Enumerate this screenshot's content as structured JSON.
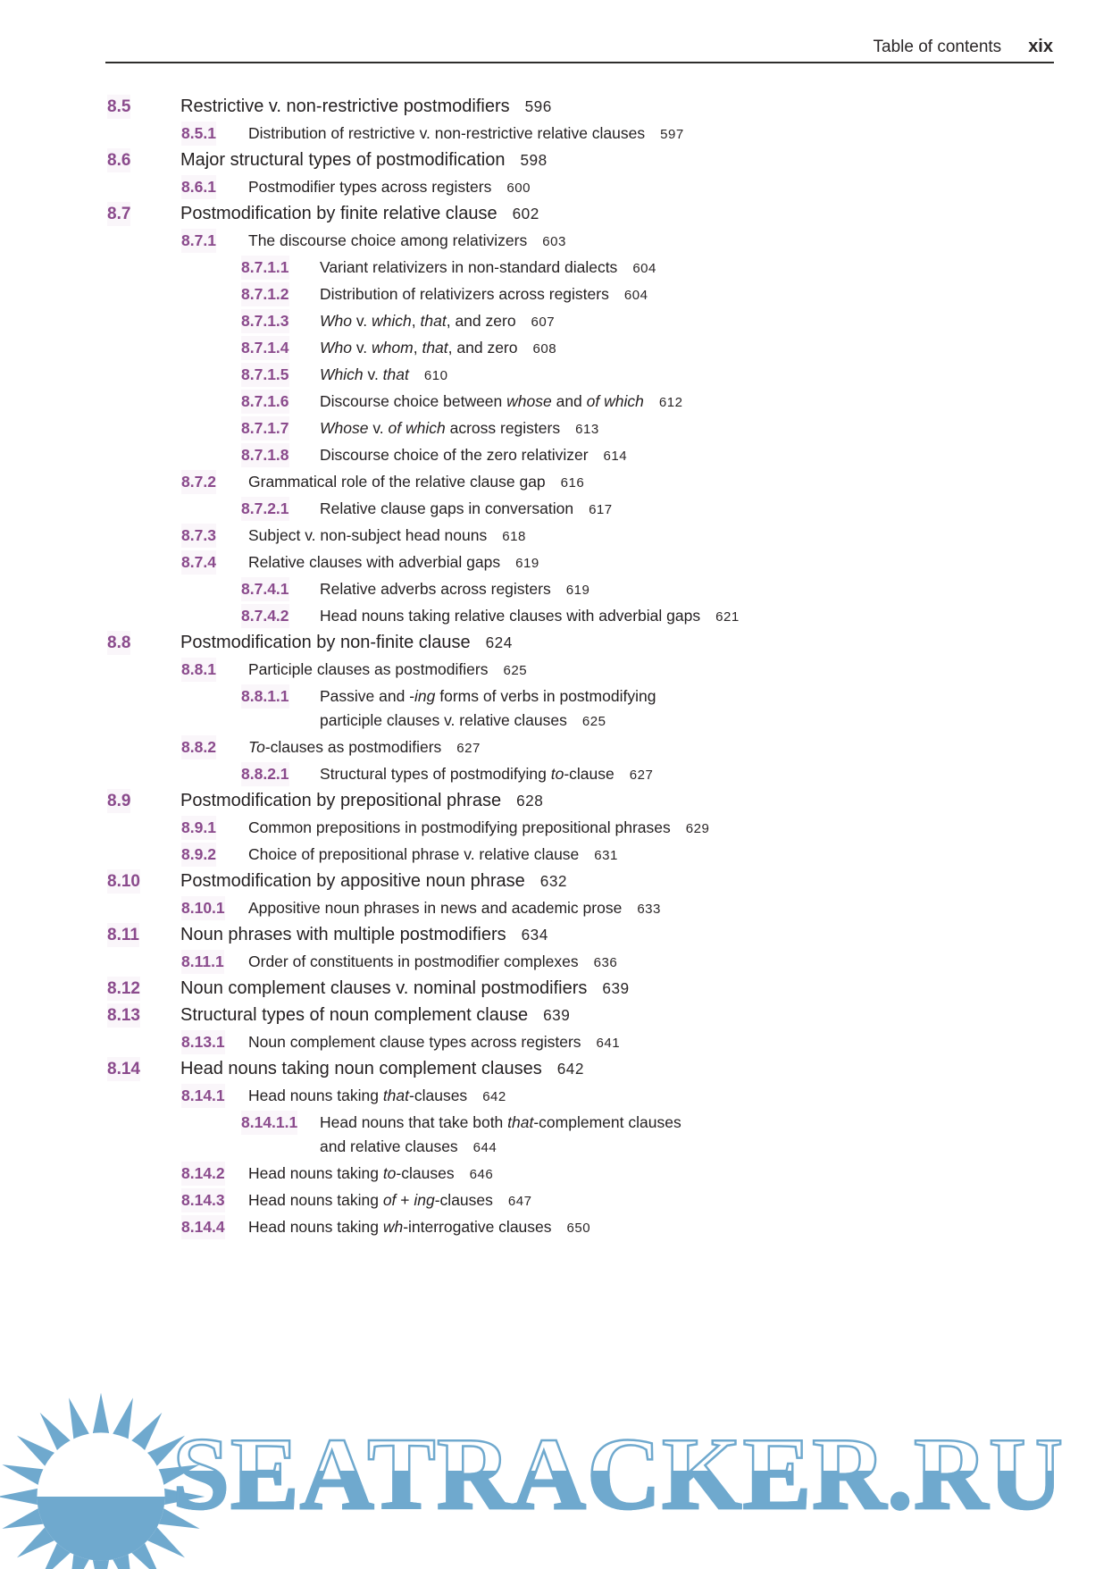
{
  "header": {
    "title": "Table of contents",
    "page_label": "xix"
  },
  "colors": {
    "section_number": "#8a4a8c",
    "body_text": "#231f20",
    "watermark_blue": "#6fa9ce"
  },
  "toc": {
    "entries": [
      {
        "num": "8.5",
        "level": 1,
        "page": "596",
        "segments": [
          {
            "text": "Restrictive v. non-restrictive postmodifiers"
          }
        ]
      },
      {
        "num": "8.5.1",
        "level": 2,
        "page": "597",
        "segments": [
          {
            "text": "Distribution of restrictive v. non-restrictive relative clauses"
          }
        ]
      },
      {
        "num": "8.6",
        "level": 1,
        "page": "598",
        "segments": [
          {
            "text": "Major structural types of postmodification"
          }
        ]
      },
      {
        "num": "8.6.1",
        "level": 2,
        "page": "600",
        "segments": [
          {
            "text": "Postmodifier types across registers"
          }
        ]
      },
      {
        "num": "8.7",
        "level": 1,
        "page": "602",
        "segments": [
          {
            "text": "Postmodification by finite relative clause"
          }
        ]
      },
      {
        "num": "8.7.1",
        "level": 2,
        "page": "603",
        "segments": [
          {
            "text": "The discourse choice among relativizers"
          }
        ]
      },
      {
        "num": "8.7.1.1",
        "level": 3,
        "page": "604",
        "segments": [
          {
            "text": "Variant relativizers in non-standard dialects"
          }
        ]
      },
      {
        "num": "8.7.1.2",
        "level": 3,
        "page": "604",
        "segments": [
          {
            "text": "Distribution of relativizers across registers"
          }
        ]
      },
      {
        "num": "8.7.1.3",
        "level": 3,
        "page": "607",
        "segments": [
          {
            "text": "Who",
            "italic": true
          },
          {
            "text": " v. "
          },
          {
            "text": "which",
            "italic": true
          },
          {
            "text": ", "
          },
          {
            "text": "that",
            "italic": true
          },
          {
            "text": ", and zero"
          }
        ]
      },
      {
        "num": "8.7.1.4",
        "level": 3,
        "page": "608",
        "segments": [
          {
            "text": "Who",
            "italic": true
          },
          {
            "text": " v. "
          },
          {
            "text": "whom",
            "italic": true
          },
          {
            "text": ", "
          },
          {
            "text": "that",
            "italic": true
          },
          {
            "text": ", and zero"
          }
        ]
      },
      {
        "num": "8.7.1.5",
        "level": 3,
        "page": "610",
        "segments": [
          {
            "text": "Which",
            "italic": true
          },
          {
            "text": " v. "
          },
          {
            "text": "that",
            "italic": true
          }
        ]
      },
      {
        "num": "8.7.1.6",
        "level": 3,
        "page": "612",
        "segments": [
          {
            "text": "Discourse choice between "
          },
          {
            "text": "whose",
            "italic": true
          },
          {
            "text": " and "
          },
          {
            "text": "of which",
            "italic": true
          }
        ]
      },
      {
        "num": "8.7.1.7",
        "level": 3,
        "page": "613",
        "segments": [
          {
            "text": "Whose",
            "italic": true
          },
          {
            "text": " v. "
          },
          {
            "text": "of which",
            "italic": true
          },
          {
            "text": " across registers"
          }
        ]
      },
      {
        "num": "8.7.1.8",
        "level": 3,
        "page": "614",
        "segments": [
          {
            "text": "Discourse choice of the zero relativizer"
          }
        ]
      },
      {
        "num": "8.7.2",
        "level": 2,
        "page": "616",
        "segments": [
          {
            "text": "Grammatical role of the relative clause gap"
          }
        ]
      },
      {
        "num": "8.7.2.1",
        "level": 3,
        "page": "617",
        "segments": [
          {
            "text": "Relative clause gaps in conversation"
          }
        ]
      },
      {
        "num": "8.7.3",
        "level": 2,
        "page": "618",
        "segments": [
          {
            "text": "Subject v. non-subject head nouns"
          }
        ]
      },
      {
        "num": "8.7.4",
        "level": 2,
        "page": "619",
        "segments": [
          {
            "text": "Relative clauses with adverbial gaps"
          }
        ]
      },
      {
        "num": "8.7.4.1",
        "level": 3,
        "page": "619",
        "segments": [
          {
            "text": "Relative adverbs across registers"
          }
        ]
      },
      {
        "num": "8.7.4.2",
        "level": 3,
        "page": "621",
        "segments": [
          {
            "text": "Head nouns taking relative clauses with adverbial gaps"
          }
        ]
      },
      {
        "num": "8.8",
        "level": 1,
        "page": "624",
        "segments": [
          {
            "text": "Postmodification by non-finite clause"
          }
        ]
      },
      {
        "num": "8.8.1",
        "level": 2,
        "page": "625",
        "segments": [
          {
            "text": "Participle clauses as postmodifiers"
          }
        ]
      },
      {
        "num": "8.8.1.1",
        "level": 3,
        "page": "625",
        "segments": [
          {
            "text": "Passive and -"
          },
          {
            "text": "ing",
            "italic": true
          },
          {
            "text": " forms of verbs in postmodifying"
          },
          {
            "line_break": true
          },
          {
            "text": "participle clauses v. relative clauses"
          }
        ]
      },
      {
        "num": "8.8.2",
        "level": 2,
        "page": "627",
        "segments": [
          {
            "text": "To",
            "italic": true
          },
          {
            "text": "-clauses as postmodifiers"
          }
        ]
      },
      {
        "num": "8.8.2.1",
        "level": 3,
        "page": "627",
        "segments": [
          {
            "text": "Structural types of postmodifying "
          },
          {
            "text": "to",
            "italic": true
          },
          {
            "text": "-clause"
          }
        ]
      },
      {
        "num": "8.9",
        "level": 1,
        "page": "628",
        "segments": [
          {
            "text": "Postmodification by prepositional phrase"
          }
        ]
      },
      {
        "num": "8.9.1",
        "level": 2,
        "page": "629",
        "segments": [
          {
            "text": "Common prepositions in postmodifying prepositional phrases"
          }
        ]
      },
      {
        "num": "8.9.2",
        "level": 2,
        "page": "631",
        "segments": [
          {
            "text": "Choice of prepositional phrase v. relative clause"
          }
        ]
      },
      {
        "num": "8.10",
        "level": 1,
        "page": "632",
        "segments": [
          {
            "text": "Postmodification by appositive noun phrase"
          }
        ]
      },
      {
        "num": "8.10.1",
        "level": 2,
        "page": "633",
        "segments": [
          {
            "text": "Appositive noun phrases in news and academic prose"
          }
        ]
      },
      {
        "num": "8.11",
        "level": 1,
        "page": "634",
        "segments": [
          {
            "text": "Noun phrases with multiple postmodifiers"
          }
        ]
      },
      {
        "num": "8.11.1",
        "level": 2,
        "page": "636",
        "segments": [
          {
            "text": "Order of constituents in postmodifier complexes"
          }
        ]
      },
      {
        "num": "8.12",
        "level": 1,
        "page": "639",
        "segments": [
          {
            "text": "Noun complement clauses v. nominal postmodifiers"
          }
        ]
      },
      {
        "num": "8.13",
        "level": 1,
        "page": "639",
        "segments": [
          {
            "text": "Structural types of noun complement clause"
          }
        ]
      },
      {
        "num": "8.13.1",
        "level": 2,
        "page": "641",
        "segments": [
          {
            "text": "Noun complement clause types across registers"
          }
        ]
      },
      {
        "num": "8.14",
        "level": 1,
        "page": "642",
        "segments": [
          {
            "text": "Head nouns taking noun complement clauses"
          }
        ]
      },
      {
        "num": "8.14.1",
        "level": 2,
        "page": "642",
        "segments": [
          {
            "text": "Head nouns taking "
          },
          {
            "text": "that",
            "italic": true
          },
          {
            "text": "-clauses"
          }
        ]
      },
      {
        "num": "8.14.1.1",
        "level": 3,
        "page": "644",
        "segments": [
          {
            "text": "Head nouns that take both "
          },
          {
            "text": "that",
            "italic": true
          },
          {
            "text": "-complement clauses"
          },
          {
            "line_break": true
          },
          {
            "text": "and relative clauses"
          }
        ]
      },
      {
        "num": "8.14.2",
        "level": 2,
        "page": "646",
        "segments": [
          {
            "text": "Head nouns taking "
          },
          {
            "text": "to",
            "italic": true
          },
          {
            "text": "-clauses"
          }
        ]
      },
      {
        "num": "8.14.3",
        "level": 2,
        "page": "647",
        "segments": [
          {
            "text": "Head nouns taking "
          },
          {
            "text": "of",
            "italic": true
          },
          {
            "text": " + "
          },
          {
            "text": "ing",
            "italic": true
          },
          {
            "text": "-clauses"
          }
        ]
      },
      {
        "num": "8.14.4",
        "level": 2,
        "page": "650",
        "segments": [
          {
            "text": "Head nouns taking "
          },
          {
            "text": "wh",
            "italic": true
          },
          {
            "text": "-interrogative clauses"
          }
        ]
      }
    ]
  },
  "watermark": {
    "text": "SEATRACKER.RU",
    "icon": "sun-icon"
  }
}
